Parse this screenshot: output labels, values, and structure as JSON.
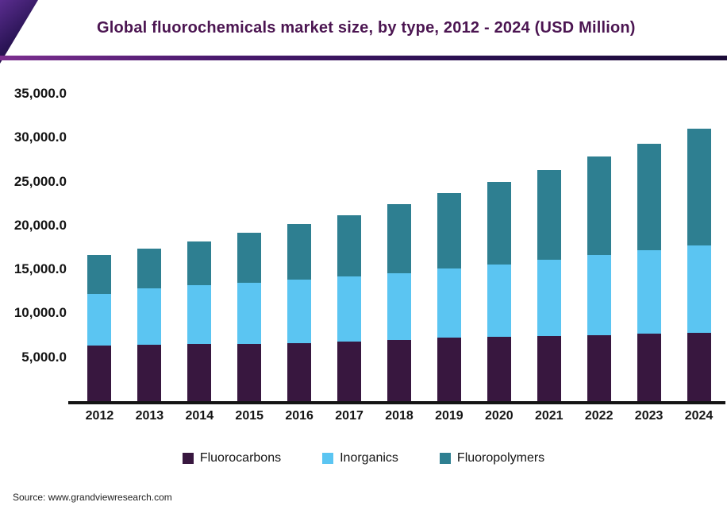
{
  "header": {
    "title": "Global fluorochemicals market size, by type, 2012 - 2024 (USD Million)"
  },
  "footer": {
    "source": "Source: www.grandviewresearch.com"
  },
  "colors": {
    "title": "#4b1551",
    "axis": "#141414",
    "accent_gradient_start": "#7c2f8f",
    "accent_gradient_end": "#1c0b38"
  },
  "chart_data": {
    "type": "bar",
    "stacked": true,
    "title": "Global fluorochemicals market size, by type, 2012 - 2024 (USD Million)",
    "xlabel": "",
    "ylabel": "USD Million",
    "categories": [
      "2012",
      "2013",
      "2014",
      "2015",
      "2016",
      "2017",
      "2018",
      "2019",
      "2020",
      "2021",
      "2022",
      "2023",
      "2024"
    ],
    "series": [
      {
        "name": "Fluorocarbons",
        "color": "#38173f",
        "values": [
          6300,
          6400,
          6500,
          6500,
          6600,
          6800,
          7000,
          7200,
          7300,
          7400,
          7500,
          7700,
          7800
        ]
      },
      {
        "name": "Inorganics",
        "color": "#5bc5f2",
        "values": [
          5900,
          6400,
          6700,
          7000,
          7200,
          7400,
          7600,
          7900,
          8300,
          8700,
          9100,
          9500,
          9900
        ]
      },
      {
        "name": "Fluoropolymers",
        "color": "#2e7f91",
        "values": [
          4400,
          4600,
          5000,
          5700,
          6400,
          7000,
          7800,
          8600,
          9400,
          10200,
          11300,
          12100,
          13300
        ]
      }
    ],
    "totals": [
      16600,
      17400,
      18200,
      19200,
      20200,
      21200,
      22400,
      23700,
      25000,
      26300,
      27900,
      29300,
      31000
    ],
    "ylim": [
      0,
      35000
    ],
    "yticks": [
      5000,
      10000,
      15000,
      20000,
      25000,
      30000,
      35000
    ],
    "ytick_labels": [
      "5,000.0",
      "10,000.0",
      "15,000.0",
      "20,000.0",
      "25,000.0",
      "30,000.0",
      "35,000.0"
    ],
    "grid": false,
    "legend_position": "bottom"
  }
}
